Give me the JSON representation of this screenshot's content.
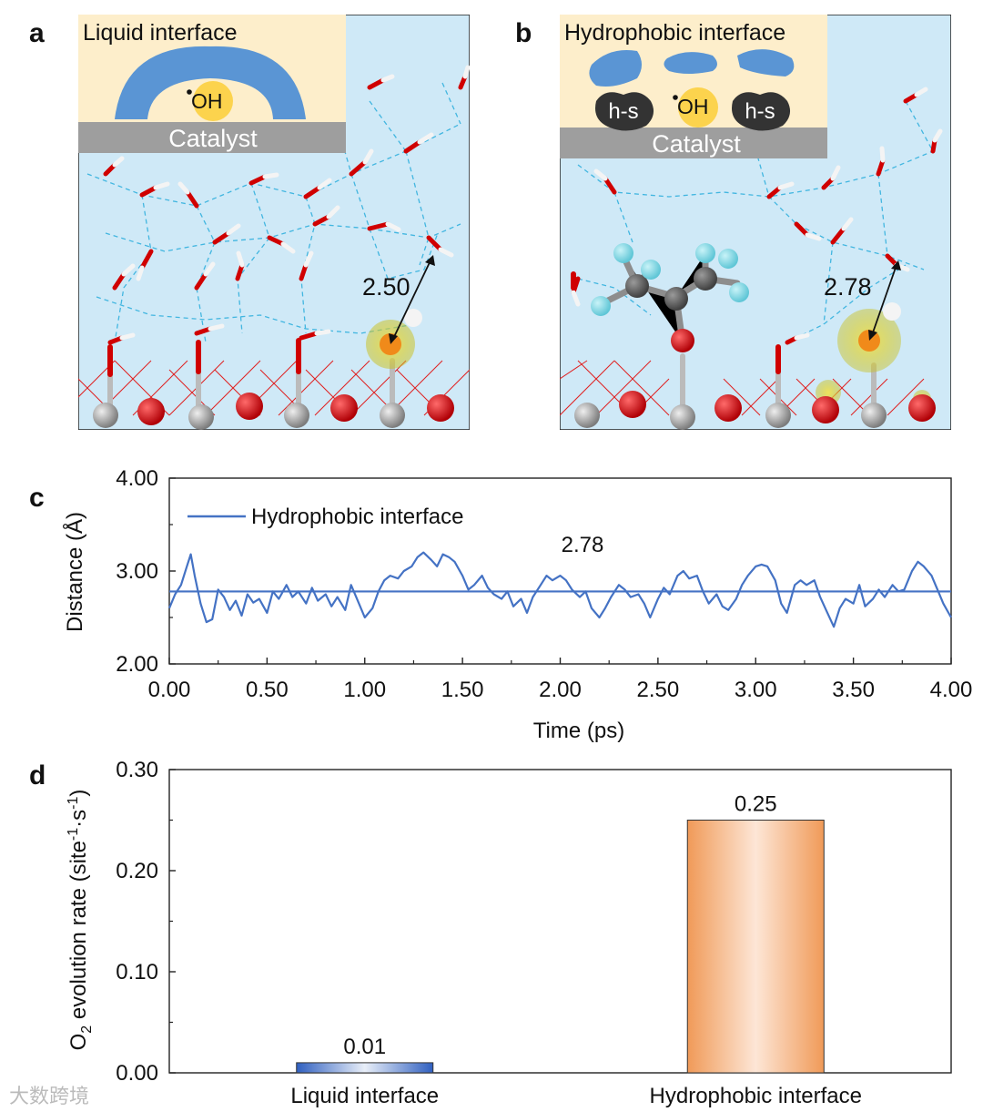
{
  "panels": {
    "a": "a",
    "b": "b",
    "c": "c",
    "d": "d"
  },
  "panel_a": {
    "inset_title": "Liquid interface",
    "radical": "OH",
    "catalyst_label": "Catalyst",
    "distance_label": "2.50",
    "colors": {
      "background": "#cfe9f7",
      "inset": "#fdeecb",
      "water_layer": "#5a95d4",
      "radical": "#fcd34d",
      "catalyst": "#9e9e9e",
      "oxygen": "#d81418",
      "metal": "#a8a8a8",
      "hbond": "#42b6e0"
    }
  },
  "panel_b": {
    "inset_title": "Hydrophobic interface",
    "radical": "OH",
    "hs_label": "h-s",
    "catalyst_label": "Catalyst",
    "distance_label": "2.78",
    "colors": {
      "background": "#cfe9f7",
      "inset": "#fdeecb",
      "cluster": "#5a95d4",
      "hs_blob": "#333333",
      "fluorine": "#8fdce8"
    }
  },
  "chart_data": [
    {
      "panel": "c",
      "type": "line",
      "xlabel": "Time (ps)",
      "ylabel": "Distance (Å)",
      "xlim": [
        0,
        4
      ],
      "ylim": [
        2,
        4
      ],
      "xticks": [
        "0.00",
        "0.50",
        "1.00",
        "1.50",
        "2.00",
        "2.50",
        "3.00",
        "3.50",
        "4.00"
      ],
      "yticks": [
        "2.00",
        "3.00",
        "4.00"
      ],
      "legend": {
        "entries": [
          "Hydrophobic interface"
        ],
        "placement": "top-left"
      },
      "annotation": "2.78",
      "mean": 2.78,
      "series": [
        {
          "name": "Hydrophobic interface",
          "color": "#4472c4",
          "x": [
            0,
            0.03,
            0.06,
            0.09,
            0.11,
            0.13,
            0.16,
            0.19,
            0.22,
            0.25,
            0.28,
            0.31,
            0.34,
            0.37,
            0.4,
            0.43,
            0.46,
            0.5,
            0.53,
            0.56,
            0.6,
            0.63,
            0.66,
            0.7,
            0.73,
            0.76,
            0.8,
            0.83,
            0.86,
            0.9,
            0.93,
            0.96,
            1.0,
            1.04,
            1.07,
            1.1,
            1.13,
            1.17,
            1.2,
            1.24,
            1.27,
            1.3,
            1.34,
            1.37,
            1.4,
            1.43,
            1.46,
            1.5,
            1.53,
            1.56,
            1.6,
            1.63,
            1.66,
            1.7,
            1.73,
            1.76,
            1.8,
            1.83,
            1.86,
            1.9,
            1.93,
            1.96,
            2.0,
            2.03,
            2.06,
            2.1,
            2.13,
            2.16,
            2.2,
            2.23,
            2.26,
            2.3,
            2.33,
            2.36,
            2.4,
            2.43,
            2.46,
            2.5,
            2.53,
            2.56,
            2.6,
            2.63,
            2.66,
            2.7,
            2.73,
            2.76,
            2.8,
            2.83,
            2.86,
            2.9,
            2.93,
            2.96,
            3.0,
            3.03,
            3.06,
            3.1,
            3.13,
            3.16,
            3.2,
            3.23,
            3.26,
            3.3,
            3.33,
            3.36,
            3.4,
            3.43,
            3.46,
            3.5,
            3.53,
            3.56,
            3.6,
            3.63,
            3.66,
            3.7,
            3.73,
            3.76,
            3.8,
            3.83,
            3.86,
            3.9,
            3.93,
            3.96,
            4.0
          ],
          "y": [
            2.6,
            2.75,
            2.85,
            3.05,
            3.18,
            2.95,
            2.65,
            2.45,
            2.48,
            2.8,
            2.72,
            2.58,
            2.68,
            2.52,
            2.75,
            2.66,
            2.7,
            2.55,
            2.78,
            2.7,
            2.85,
            2.72,
            2.78,
            2.65,
            2.82,
            2.68,
            2.75,
            2.62,
            2.72,
            2.58,
            2.85,
            2.7,
            2.5,
            2.6,
            2.78,
            2.9,
            2.95,
            2.92,
            3.0,
            3.05,
            3.15,
            3.2,
            3.12,
            3.05,
            3.18,
            3.15,
            3.1,
            2.95,
            2.8,
            2.85,
            2.95,
            2.82,
            2.75,
            2.7,
            2.78,
            2.62,
            2.7,
            2.55,
            2.72,
            2.85,
            2.95,
            2.9,
            2.95,
            2.9,
            2.8,
            2.72,
            2.78,
            2.6,
            2.5,
            2.6,
            2.72,
            2.85,
            2.8,
            2.72,
            2.75,
            2.65,
            2.5,
            2.7,
            2.82,
            2.75,
            2.95,
            3.0,
            2.92,
            2.95,
            2.78,
            2.65,
            2.75,
            2.62,
            2.58,
            2.7,
            2.85,
            2.95,
            3.05,
            3.07,
            3.05,
            2.9,
            2.65,
            2.55,
            2.85,
            2.9,
            2.85,
            2.9,
            2.72,
            2.58,
            2.4,
            2.6,
            2.7,
            2.65,
            2.85,
            2.62,
            2.7,
            2.8,
            2.72,
            2.85,
            2.78,
            2.8,
            3.0,
            3.1,
            3.05,
            2.95,
            2.8,
            2.65,
            2.5
          ]
        }
      ]
    },
    {
      "panel": "d",
      "type": "bar",
      "categories": [
        "Liquid interface",
        "Hydrophobic interface"
      ],
      "values": [
        0.01,
        0.25
      ],
      "value_labels": [
        "0.01",
        "0.25"
      ],
      "ylabel": {
        "o": "O",
        "sub": "2",
        "text": " evolution rate (site",
        "sup1": "-1",
        "mid": "·s",
        "sup2": "-1",
        "end": ")"
      },
      "ylim": [
        0,
        0.3
      ],
      "yticks": [
        "0.00",
        "0.10",
        "0.20",
        "0.30"
      ],
      "colors": [
        "#3f6fc4",
        "#f0a06a"
      ]
    }
  ],
  "watermark": "大数跨境"
}
